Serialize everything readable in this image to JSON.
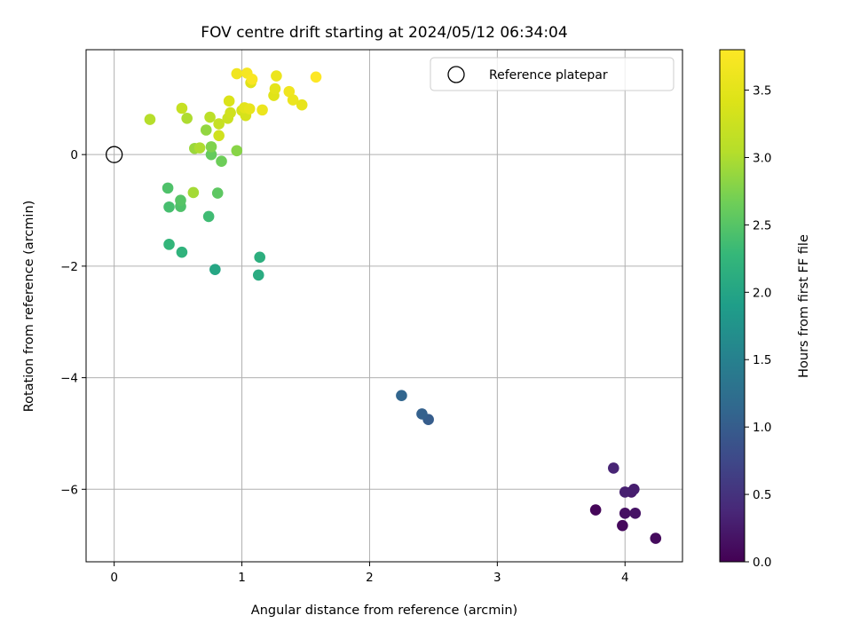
{
  "chart_data": {
    "type": "scatter",
    "title": "FOV centre drift starting at 2024/05/12 06:34:04",
    "xlabel": "Angular distance from reference (arcmin)",
    "ylabel": "Rotation from reference (arcmin)",
    "xlim": [
      -0.22,
      4.45
    ],
    "ylim": [
      -7.3,
      1.88
    ],
    "xticks": [
      0,
      1,
      2,
      3,
      4
    ],
    "yticks": [
      0,
      -2,
      -4,
      -6
    ],
    "grid": true,
    "legend": {
      "location": "top-right",
      "entries": [
        "Reference platepar"
      ]
    },
    "reference_point": {
      "x": 0,
      "y": 0,
      "label": "Reference platepar"
    },
    "colorbar": {
      "label": "Hours from first FF file",
      "min": 0.0,
      "max": 3.8,
      "ticks": [
        0.0,
        0.5,
        1.0,
        1.5,
        2.0,
        2.5,
        3.0,
        3.5
      ],
      "colormap": "viridis"
    },
    "points": [
      {
        "x": 3.77,
        "y": -6.37,
        "c": 0.05
      },
      {
        "x": 3.98,
        "y": -6.65,
        "c": 0.08
      },
      {
        "x": 4.24,
        "y": -6.88,
        "c": 0.1
      },
      {
        "x": 4.0,
        "y": -6.43,
        "c": 0.15
      },
      {
        "x": 4.08,
        "y": -6.43,
        "c": 0.18
      },
      {
        "x": 4.05,
        "y": -6.05,
        "c": 0.25
      },
      {
        "x": 4.07,
        "y": -6.0,
        "c": 0.28
      },
      {
        "x": 4.0,
        "y": -6.05,
        "c": 0.3
      },
      {
        "x": 3.91,
        "y": -5.62,
        "c": 0.35
      },
      {
        "x": 2.46,
        "y": -4.75,
        "c": 1.0
      },
      {
        "x": 2.41,
        "y": -4.65,
        "c": 1.05
      },
      {
        "x": 2.25,
        "y": -4.32,
        "c": 1.12
      },
      {
        "x": 0.79,
        "y": -2.06,
        "c": 2.02
      },
      {
        "x": 1.13,
        "y": -2.16,
        "c": 2.1
      },
      {
        "x": 1.14,
        "y": -1.84,
        "c": 2.15
      },
      {
        "x": 0.53,
        "y": -1.75,
        "c": 2.2
      },
      {
        "x": 0.43,
        "y": -1.61,
        "c": 2.25
      },
      {
        "x": 0.74,
        "y": -1.11,
        "c": 2.35
      },
      {
        "x": 0.43,
        "y": -0.94,
        "c": 2.4
      },
      {
        "x": 0.52,
        "y": -0.93,
        "c": 2.45
      },
      {
        "x": 0.52,
        "y": -0.82,
        "c": 2.5
      },
      {
        "x": 0.42,
        "y": -0.6,
        "c": 2.45
      },
      {
        "x": 0.81,
        "y": -0.69,
        "c": 2.55
      },
      {
        "x": 0.62,
        "y": -0.68,
        "c": 2.95
      },
      {
        "x": 0.76,
        "y": 0.0,
        "c": 2.6
      },
      {
        "x": 0.84,
        "y": -0.12,
        "c": 2.65
      },
      {
        "x": 0.76,
        "y": 0.14,
        "c": 2.75
      },
      {
        "x": 0.96,
        "y": 0.07,
        "c": 2.8
      },
      {
        "x": 0.63,
        "y": 0.11,
        "c": 2.9
      },
      {
        "x": 0.67,
        "y": 0.12,
        "c": 3.0
      },
      {
        "x": 0.72,
        "y": 0.44,
        "c": 2.85
      },
      {
        "x": 0.28,
        "y": 0.63,
        "c": 3.05
      },
      {
        "x": 0.57,
        "y": 0.65,
        "c": 3.0
      },
      {
        "x": 0.53,
        "y": 0.83,
        "c": 3.2
      },
      {
        "x": 0.75,
        "y": 0.67,
        "c": 3.1
      },
      {
        "x": 0.82,
        "y": 0.34,
        "c": 3.3
      },
      {
        "x": 0.82,
        "y": 0.55,
        "c": 3.2
      },
      {
        "x": 0.89,
        "y": 0.65,
        "c": 3.25
      },
      {
        "x": 0.91,
        "y": 0.75,
        "c": 3.3
      },
      {
        "x": 0.9,
        "y": 0.96,
        "c": 3.4
      },
      {
        "x": 1.0,
        "y": 0.79,
        "c": 3.35
      },
      {
        "x": 1.03,
        "y": 0.7,
        "c": 3.35
      },
      {
        "x": 1.02,
        "y": 0.84,
        "c": 3.5
      },
      {
        "x": 1.06,
        "y": 0.82,
        "c": 3.55
      },
      {
        "x": 1.07,
        "y": 1.29,
        "c": 3.45
      },
      {
        "x": 1.16,
        "y": 0.8,
        "c": 3.6
      },
      {
        "x": 0.96,
        "y": 1.45,
        "c": 3.65
      },
      {
        "x": 1.04,
        "y": 1.46,
        "c": 3.7
      },
      {
        "x": 1.08,
        "y": 1.35,
        "c": 3.75
      },
      {
        "x": 1.25,
        "y": 1.06,
        "c": 3.45
      },
      {
        "x": 1.26,
        "y": 1.18,
        "c": 3.5
      },
      {
        "x": 1.27,
        "y": 1.41,
        "c": 3.6
      },
      {
        "x": 1.37,
        "y": 1.13,
        "c": 3.65
      },
      {
        "x": 1.4,
        "y": 0.98,
        "c": 3.6
      },
      {
        "x": 1.47,
        "y": 0.89,
        "c": 3.55
      },
      {
        "x": 1.58,
        "y": 1.39,
        "c": 3.8
      }
    ]
  }
}
